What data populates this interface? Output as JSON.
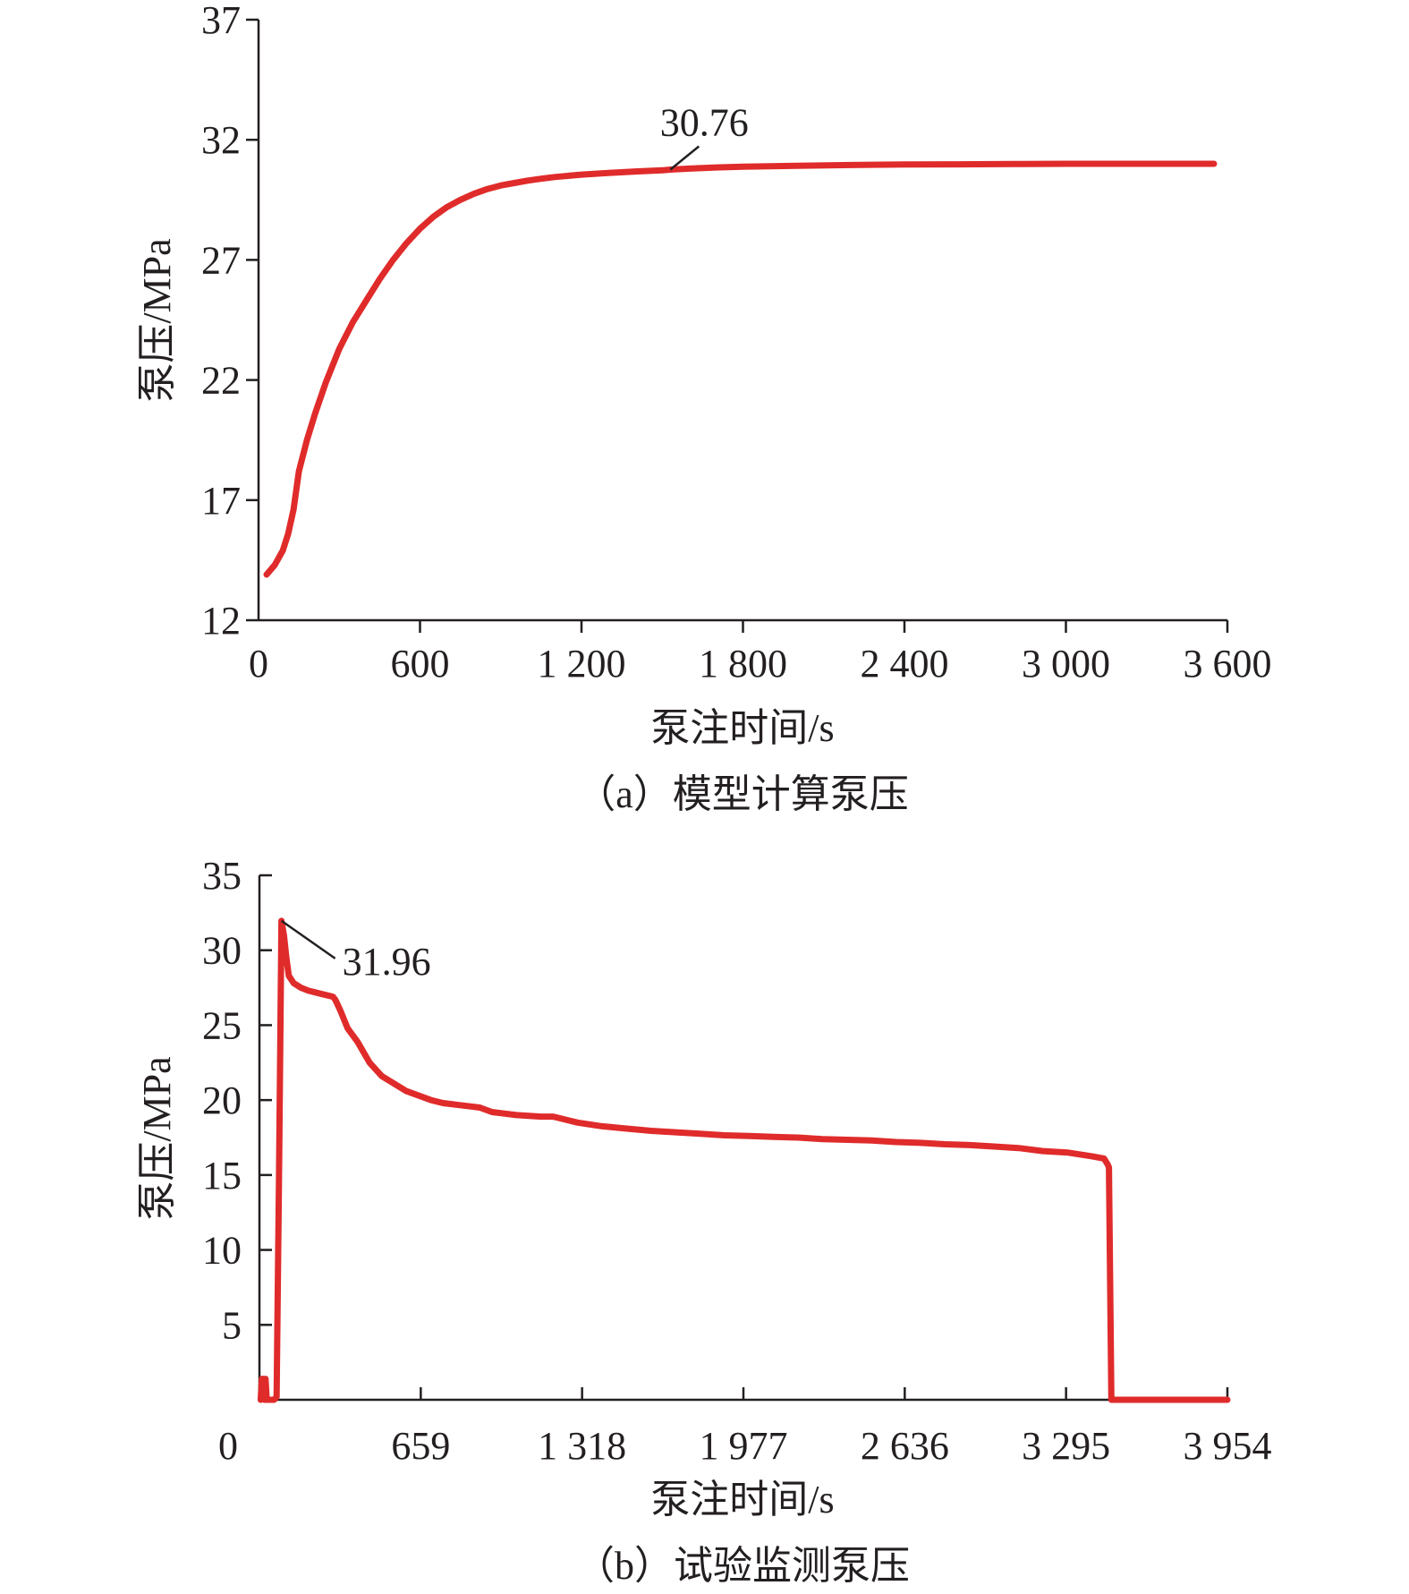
{
  "colors": {
    "series": "#e02b2b",
    "axis": "#231f20",
    "text": "#231f20"
  },
  "chart_data": [
    {
      "type": "line",
      "caption": "（a）模型计算泵压",
      "xlabel": "泵注时间/s",
      "ylabel": "泵压/MPa",
      "xlim": [
        0,
        3600
      ],
      "ylim": [
        12,
        37
      ],
      "x_ticks": [
        0,
        600,
        1200,
        1800,
        2400,
        3000,
        3600
      ],
      "x_tick_labels": [
        "0",
        "600",
        "1 200",
        "1 800",
        "2 400",
        "3 000",
        "3 600"
      ],
      "y_ticks": [
        12,
        17,
        22,
        27,
        32,
        37
      ],
      "y_tick_labels": [
        "12",
        "17",
        "22",
        "27",
        "32",
        "37"
      ],
      "grid": false,
      "annotations": [
        {
          "text": "30.76",
          "x": 1530,
          "y": 30.76
        }
      ],
      "series": [
        {
          "x": [
            30,
            60,
            90,
            110,
            130,
            150,
            180,
            210,
            250,
            300,
            350,
            400,
            450,
            500,
            550,
            600,
            650,
            700,
            750,
            800,
            850,
            900,
            950,
            1000,
            1050,
            1100,
            1200,
            1300,
            1400,
            1500,
            1530,
            1600,
            1700,
            1800,
            1900,
            2000,
            2200,
            2400,
            2600,
            2800,
            3000,
            3200,
            3400,
            3550
          ],
          "y": [
            13.9,
            14.3,
            14.9,
            15.6,
            16.6,
            18.2,
            19.5,
            20.6,
            21.9,
            23.3,
            24.4,
            25.3,
            26.2,
            27.0,
            27.7,
            28.3,
            28.8,
            29.2,
            29.5,
            29.75,
            29.95,
            30.1,
            30.2,
            30.3,
            30.38,
            30.45,
            30.55,
            30.62,
            30.68,
            30.73,
            30.76,
            30.8,
            30.85,
            30.88,
            30.9,
            30.92,
            30.95,
            30.97,
            30.98,
            30.99,
            31.0,
            31.0,
            31.0,
            31.0
          ]
        }
      ]
    },
    {
      "type": "line",
      "caption": "（b）试验监测泵压",
      "xlabel": "泵注时间/s",
      "ylabel": "泵压/MPa",
      "xlim": [
        0,
        3954
      ],
      "ylim": [
        0,
        35
      ],
      "x_ticks": [
        0,
        659,
        1318,
        1977,
        2636,
        3295,
        3954
      ],
      "x_tick_labels": [
        "0",
        "659",
        "1 318",
        "1 977",
        "2 636",
        "3 295",
        "3 954"
      ],
      "y_ticks": [
        5,
        10,
        15,
        20,
        25,
        30,
        35
      ],
      "y_tick_labels": [
        "5",
        "10",
        "15",
        "20",
        "25",
        "30",
        "35"
      ],
      "grid": false,
      "annotations": [
        {
          "text": "31.96",
          "x": 90,
          "y": 31.96
        }
      ],
      "series": [
        {
          "x": [
            5,
            10,
            15,
            20,
            25,
            30,
            60,
            70,
            80,
            90,
            100,
            110,
            120,
            140,
            170,
            200,
            250,
            300,
            310,
            330,
            360,
            400,
            450,
            500,
            550,
            600,
            650,
            700,
            750,
            800,
            850,
            900,
            950,
            1000,
            1050,
            1100,
            1150,
            1200,
            1300,
            1400,
            1500,
            1600,
            1700,
            1800,
            1900,
            2000,
            2100,
            2200,
            2300,
            2400,
            2500,
            2600,
            2700,
            2800,
            2900,
            3000,
            3100,
            3200,
            3300,
            3400,
            3450,
            3465,
            3470,
            3480,
            3500,
            3600,
            3700,
            3800,
            3954
          ],
          "y": [
            0,
            1.4,
            1.4,
            0,
            1.4,
            0,
            0,
            0.2,
            15,
            31.96,
            31.0,
            29.5,
            28.3,
            27.8,
            27.5,
            27.3,
            27.1,
            26.9,
            26.7,
            26.0,
            24.8,
            23.9,
            22.5,
            21.6,
            21.1,
            20.6,
            20.3,
            20.0,
            19.8,
            19.7,
            19.6,
            19.5,
            19.2,
            19.1,
            19.0,
            18.95,
            18.9,
            18.9,
            18.5,
            18.25,
            18.1,
            17.95,
            17.85,
            17.75,
            17.65,
            17.6,
            17.55,
            17.5,
            17.4,
            17.35,
            17.3,
            17.2,
            17.15,
            17.05,
            17.0,
            16.9,
            16.8,
            16.6,
            16.5,
            16.25,
            16.1,
            15.7,
            15.5,
            0,
            0,
            0,
            0,
            0,
            0
          ]
        }
      ]
    }
  ]
}
